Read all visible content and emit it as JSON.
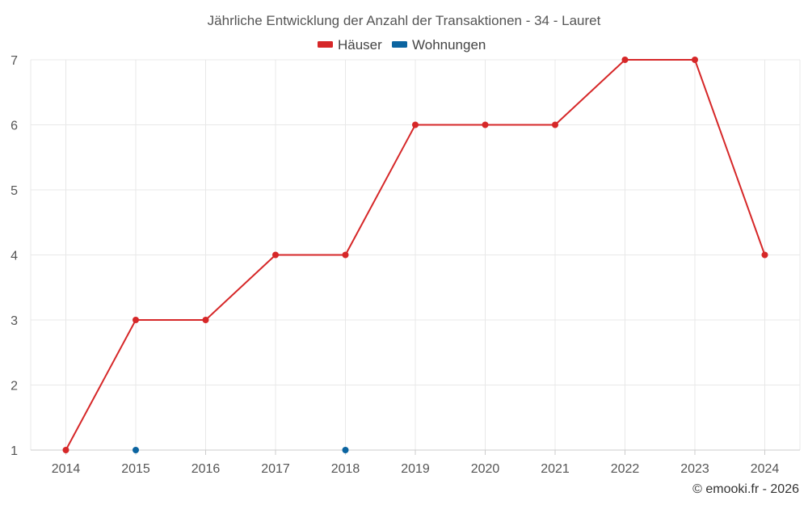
{
  "chart_data": {
    "type": "line",
    "title": "Jährliche Entwicklung der Anzahl der Transaktionen - 34 - Lauret",
    "x": [
      2014,
      2015,
      2016,
      2017,
      2018,
      2019,
      2020,
      2021,
      2022,
      2023,
      2024
    ],
    "xlabel": "",
    "ylabel": "",
    "ylim": [
      1,
      7
    ],
    "yticks": [
      1,
      2,
      3,
      4,
      5,
      6,
      7
    ],
    "grid": true,
    "legend_position": "top-center",
    "series": [
      {
        "name": "Häuser",
        "color": "#d62728",
        "points": [
          {
            "x": 2014,
            "y": 1
          },
          {
            "x": 2015,
            "y": 3
          },
          {
            "x": 2016,
            "y": 3
          },
          {
            "x": 2017,
            "y": 4
          },
          {
            "x": 2018,
            "y": 4
          },
          {
            "x": 2019,
            "y": 6
          },
          {
            "x": 2020,
            "y": 6
          },
          {
            "x": 2021,
            "y": 6
          },
          {
            "x": 2022,
            "y": 7
          },
          {
            "x": 2023,
            "y": 7
          },
          {
            "x": 2024,
            "y": 4
          }
        ]
      },
      {
        "name": "Wohnungen",
        "color": "#0b64a0",
        "points": [
          {
            "x": 2015,
            "y": 1
          },
          {
            "x": 2018,
            "y": 1
          }
        ]
      }
    ]
  },
  "credit": "© emooki.fr - 2026"
}
